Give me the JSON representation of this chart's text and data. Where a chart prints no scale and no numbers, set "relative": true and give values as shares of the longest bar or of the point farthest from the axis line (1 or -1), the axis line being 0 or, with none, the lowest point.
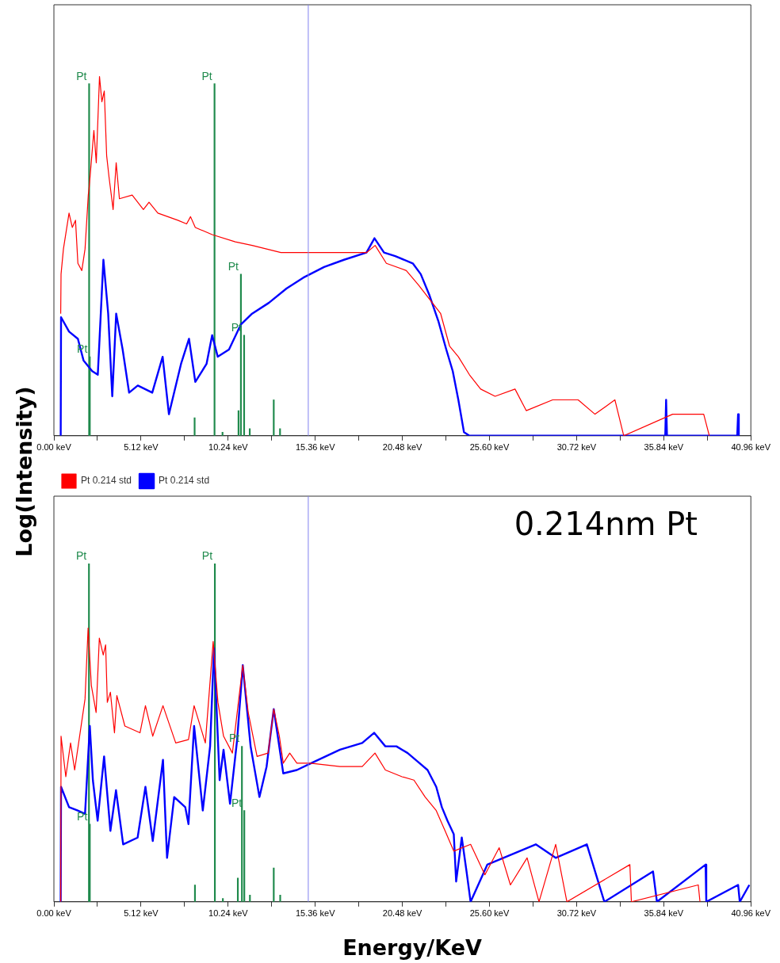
{
  "chart_data": [
    {
      "type": "line",
      "ylabel": "Log(Intensity)",
      "relative": true,
      "xlim": [
        0,
        40.96
      ],
      "xticks": [
        {
          "value": 0,
          "label": "0.00 keV"
        },
        {
          "value": 2.56,
          "label": null
        },
        {
          "value": 5.12,
          "label": "5.12 keV"
        },
        {
          "value": 7.68,
          "label": null
        },
        {
          "value": 10.24,
          "label": "10.24 keV"
        },
        {
          "value": 12.8,
          "label": null
        },
        {
          "value": 15.36,
          "label": "15.36 keV"
        },
        {
          "value": 17.92,
          "label": null
        },
        {
          "value": 20.48,
          "label": "20.48 keV"
        },
        {
          "value": 23.04,
          "label": null
        },
        {
          "value": 25.6,
          "label": "25.60 keV"
        },
        {
          "value": 28.16,
          "label": null
        },
        {
          "value": 30.72,
          "label": "30.72 keV"
        },
        {
          "value": 33.28,
          "label": null
        },
        {
          "value": 35.84,
          "label": "35.84 keV"
        },
        {
          "value": 38.4,
          "label": null
        },
        {
          "value": 40.96,
          "label": "40.96 keV"
        }
      ],
      "series": [
        {
          "color": "#ff0000",
          "x": [
            0.4,
            0.42,
            0.56,
            0.89,
            1.08,
            1.27,
            1.41,
            1.64,
            1.83,
            2.02,
            2.07,
            2.35,
            2.49,
            2.68,
            2.82,
            2.96,
            3.1,
            3.24,
            3.48,
            3.66,
            3.85,
            4.6,
            5.26,
            5.59,
            6.11,
            7.28,
            7.8,
            8.03,
            8.31,
            9.3,
            10.66,
            11.65,
            13.34,
            14.98,
            16.72,
            18.37,
            18.88,
            19.54,
            20.71,
            21.42,
            22.08,
            22.73,
            23.25,
            23.77,
            24.42,
            25.08,
            25.93,
            27.1,
            27.76,
            29.31,
            30.81,
            31.8,
            32.97,
            33.49,
            36.36,
            38.19,
            38.52
          ],
          "values": [
            0.34,
            0.45,
            0.52,
            0.62,
            0.58,
            0.6,
            0.48,
            0.46,
            0.52,
            0.67,
            0.69,
            0.85,
            0.76,
            1.0,
            0.93,
            0.96,
            0.78,
            0.72,
            0.63,
            0.76,
            0.66,
            0.67,
            0.63,
            0.65,
            0.62,
            0.6,
            0.59,
            0.61,
            0.58,
            0.56,
            0.54,
            0.53,
            0.51,
            0.51,
            0.51,
            0.51,
            0.53,
            0.48,
            0.46,
            0.42,
            0.38,
            0.34,
            0.25,
            0.22,
            0.17,
            0.13,
            0.11,
            0.13,
            0.07,
            0.1,
            0.1,
            0.06,
            0.1,
            0.0,
            0.06,
            0.06,
            0.0
          ]
        },
        {
          "color": "#0000ff",
          "x": [
            0.4,
            0.42,
            0.89,
            1.41,
            1.74,
            2.25,
            2.58,
            2.91,
            3.19,
            3.43,
            3.66,
            4.04,
            4.42,
            4.93,
            5.78,
            6.39,
            6.76,
            7.47,
            7.94,
            8.31,
            8.97,
            9.3,
            9.63,
            10.29,
            10.99,
            11.65,
            12.63,
            13.67,
            14.65,
            15.88,
            17.05,
            18.37,
            18.84,
            19.4,
            20.06,
            21.09,
            21.56,
            22.08,
            22.59,
            23.06,
            23.44,
            23.77,
            24.1,
            24.42,
            35.93,
            35.98,
            36.03,
            40.16,
            40.21,
            40.25
          ],
          "values": [
            0.0,
            0.33,
            0.29,
            0.27,
            0.21,
            0.18,
            0.17,
            0.49,
            0.34,
            0.11,
            0.34,
            0.24,
            0.12,
            0.14,
            0.12,
            0.22,
            0.06,
            0.2,
            0.27,
            0.15,
            0.2,
            0.28,
            0.22,
            0.24,
            0.31,
            0.34,
            0.37,
            0.41,
            0.44,
            0.47,
            0.49,
            0.51,
            0.55,
            0.51,
            0.5,
            0.48,
            0.45,
            0.39,
            0.32,
            0.24,
            0.18,
            0.1,
            0.01,
            0.0,
            0.0,
            0.1,
            0.0,
            0.0,
            0.06,
            0.0
          ]
        },
        {
          "type": "bar",
          "color": "#1f8a4c",
          "x": [
            2.07,
            2.11,
            8.27,
            9.44,
            9.91,
            10.85,
            10.99,
            11.18,
            11.51,
            12.92,
            13.29
          ],
          "values": [
            0.98,
            0.22,
            0.05,
            0.98,
            0.01,
            0.07,
            0.45,
            0.28,
            0.02,
            0.1,
            0.02
          ]
        }
      ],
      "ref_lines": [
        {
          "axis": "x",
          "value": 14.95,
          "color": "#8080f0"
        }
      ],
      "annotations": [
        {
          "text": "Pt",
          "x": 2.07,
          "y": 0.98
        },
        {
          "text": "Pt",
          "x": 9.44,
          "y": 0.98
        },
        {
          "text": "Pt",
          "x": 10.99,
          "y": 0.45
        },
        {
          "text": "Pt",
          "x": 11.18,
          "y": 0.28
        },
        {
          "text": "Pt",
          "x": 2.11,
          "y": 0.22
        }
      ]
    },
    {
      "type": "line",
      "title": "0.214nm Pt",
      "xlabel": "Energy/KeV",
      "relative": true,
      "legend": "top left",
      "xlim": [
        0,
        40.96
      ],
      "xticks": [
        {
          "value": 0,
          "label": "0.00 keV"
        },
        {
          "value": 2.56,
          "label": null
        },
        {
          "value": 5.12,
          "label": "5.12 keV"
        },
        {
          "value": 7.68,
          "label": null
        },
        {
          "value": 10.24,
          "label": "10.24 keV"
        },
        {
          "value": 12.8,
          "label": null
        },
        {
          "value": 15.36,
          "label": "15.36 keV"
        },
        {
          "value": 17.92,
          "label": null
        },
        {
          "value": 20.48,
          "label": "20.48 keV"
        },
        {
          "value": 23.04,
          "label": null
        },
        {
          "value": 25.6,
          "label": "25.60 keV"
        },
        {
          "value": 28.16,
          "label": null
        },
        {
          "value": 30.72,
          "label": "30.72 keV"
        },
        {
          "value": 33.28,
          "label": null
        },
        {
          "value": 35.84,
          "label": "35.84 keV"
        },
        {
          "value": 38.4,
          "label": null
        },
        {
          "value": 40.96,
          "label": "40.96 keV"
        }
      ],
      "series": [
        {
          "name": "Pt 0.214 std",
          "color": "#ff0000",
          "x": [
            0.4,
            0.42,
            0.7,
            0.98,
            1.22,
            1.54,
            1.83,
            2.01,
            2.2,
            2.48,
            2.67,
            2.9,
            3.04,
            3.14,
            3.32,
            3.56,
            3.7,
            4.17,
            5.06,
            5.38,
            5.81,
            6.41,
            7.16,
            7.91,
            8.24,
            8.9,
            9.36,
            9.64,
            9.97,
            10.49,
            11.1,
            11.42,
            11.94,
            12.59,
            12.92,
            13.25,
            13.48,
            13.86,
            14.28,
            15.07,
            16.81,
            18.12,
            18.87,
            19.48,
            20.46,
            21.16,
            21.82,
            22.47,
            22.99,
            23.5,
            24.49,
            25.33,
            26.17,
            26.83,
            27.81,
            28.51,
            29.49,
            30.15,
            33.85,
            33.94,
            37.87,
            37.97
          ],
          "values": [
            0.0,
            0.49,
            0.37,
            0.47,
            0.39,
            0.5,
            0.6,
            0.81,
            0.64,
            0.56,
            0.78,
            0.73,
            0.76,
            0.59,
            0.62,
            0.5,
            0.61,
            0.52,
            0.5,
            0.58,
            0.49,
            0.58,
            0.47,
            0.48,
            0.58,
            0.47,
            0.77,
            0.59,
            0.49,
            0.44,
            0.7,
            0.56,
            0.43,
            0.44,
            0.57,
            0.49,
            0.41,
            0.44,
            0.41,
            0.41,
            0.4,
            0.4,
            0.44,
            0.39,
            0.37,
            0.36,
            0.31,
            0.27,
            0.21,
            0.15,
            0.17,
            0.08,
            0.16,
            0.05,
            0.13,
            0.0,
            0.17,
            0.0,
            0.11,
            0.0,
            0.05,
            0.0
          ]
        },
        {
          "name": "Pt 0.214 std",
          "color": "#0000ff",
          "x": [
            0.4,
            0.42,
            0.89,
            1.4,
            1.83,
            2.11,
            2.29,
            2.57,
            2.95,
            3.32,
            3.65,
            4.07,
            4.92,
            5.38,
            5.81,
            6.41,
            6.65,
            7.07,
            7.72,
            7.91,
            8.24,
            8.75,
            9.18,
            9.41,
            9.74,
            9.97,
            10.35,
            10.77,
            11.1,
            11.56,
            12.08,
            12.5,
            12.92,
            13.48,
            14.28,
            15.12,
            16.81,
            18.12,
            18.82,
            19.48,
            20.13,
            20.79,
            21.49,
            21.96,
            22.47,
            22.8,
            23.13,
            23.5,
            23.64,
            23.97,
            24.25,
            24.49,
            25.47,
            28.32,
            29.49,
            31.32,
            32.35,
            35.21,
            35.44,
            38.3,
            38.34,
            40.21,
            40.31,
            40.87
          ],
          "values": [
            0.0,
            0.34,
            0.28,
            0.27,
            0.26,
            0.52,
            0.36,
            0.24,
            0.43,
            0.21,
            0.33,
            0.17,
            0.19,
            0.34,
            0.18,
            0.42,
            0.13,
            0.31,
            0.28,
            0.23,
            0.52,
            0.27,
            0.46,
            0.75,
            0.36,
            0.45,
            0.29,
            0.48,
            0.7,
            0.46,
            0.31,
            0.4,
            0.57,
            0.38,
            0.39,
            0.41,
            0.45,
            0.47,
            0.5,
            0.46,
            0.46,
            0.44,
            0.41,
            0.39,
            0.34,
            0.28,
            0.24,
            0.2,
            0.06,
            0.19,
            0.09,
            0.0,
            0.11,
            0.17,
            0.13,
            0.17,
            0.0,
            0.09,
            0.0,
            0.11,
            0.0,
            0.05,
            0.0,
            0.05
          ]
        },
        {
          "type": "bar",
          "color": "#1f8a4c",
          "x": [
            2.06,
            2.11,
            8.29,
            9.46,
            9.93,
            10.81,
            11.05,
            11.19,
            11.52,
            12.92,
            13.3
          ],
          "values": [
            1.0,
            0.23,
            0.05,
            1.0,
            0.01,
            0.07,
            0.46,
            0.27,
            0.02,
            0.1,
            0.02
          ]
        }
      ],
      "ref_lines": [
        {
          "axis": "x",
          "value": 14.95,
          "color": "#8080f0"
        }
      ],
      "annotations": [
        {
          "text": "Pt",
          "x": 2.06,
          "y": 1.0
        },
        {
          "text": "Pt",
          "x": 9.46,
          "y": 1.0
        },
        {
          "text": "Pt",
          "x": 11.05,
          "y": 0.46
        },
        {
          "text": "Pt",
          "x": 11.19,
          "y": 0.27
        },
        {
          "text": "Pt",
          "x": 2.11,
          "y": 0.23
        }
      ]
    }
  ]
}
